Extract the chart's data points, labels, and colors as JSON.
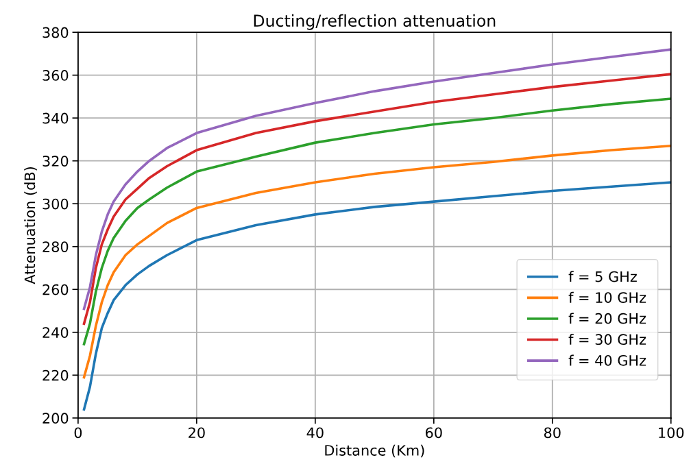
{
  "chart_data": {
    "type": "line",
    "title": "Ducting/reflection attenuation",
    "xlabel": "Distance (Km)",
    "ylabel": "Attenuation (dB)",
    "x": [
      1,
      2,
      3,
      4,
      5,
      6,
      8,
      10,
      12,
      15,
      20,
      30,
      40,
      50,
      60,
      70,
      80,
      90,
      100
    ],
    "series": [
      {
        "name": "f = 5 GHz",
        "color": "#1f77b4",
        "values": [
          204,
          214.5,
          230,
          242,
          249,
          255,
          262,
          267,
          271,
          276,
          283,
          290,
          295,
          298.5,
          301,
          303.5,
          306,
          308,
          310
        ]
      },
      {
        "name": "f = 10 GHz",
        "color": "#ff7f0e",
        "values": [
          219,
          229,
          243,
          254,
          262,
          268,
          276,
          281,
          285,
          291,
          298,
          305,
          310,
          314,
          317,
          319.5,
          322.5,
          325,
          327
        ]
      },
      {
        "name": "f = 20 GHz",
        "color": "#2ca02c",
        "values": [
          234.5,
          244,
          259,
          270,
          278,
          284,
          292,
          298,
          302,
          307.5,
          315,
          322,
          328.5,
          333,
          337,
          340,
          343.5,
          346.5,
          349
        ]
      },
      {
        "name": "f = 30 GHz",
        "color": "#d62728",
        "values": [
          244,
          254,
          270,
          281,
          288,
          294,
          302,
          307,
          312,
          317.5,
          325,
          333,
          338.5,
          343,
          347.5,
          351,
          354.5,
          357.5,
          360.5
        ]
      },
      {
        "name": "f = 40 GHz",
        "color": "#9467bd",
        "values": [
          251,
          261,
          276,
          287,
          295,
          301,
          309,
          315,
          320,
          326,
          333,
          341,
          347,
          352.5,
          357,
          361,
          365,
          368.5,
          372
        ]
      }
    ],
    "xlim": [
      0,
      100
    ],
    "xticks": [
      0,
      20,
      40,
      60,
      80,
      100
    ],
    "ylim": [
      200,
      380
    ],
    "yticks": [
      200,
      220,
      240,
      260,
      280,
      300,
      320,
      340,
      360,
      380
    ],
    "grid": true,
    "legend": "lower right",
    "marker": "none",
    "line_style": "solid"
  }
}
